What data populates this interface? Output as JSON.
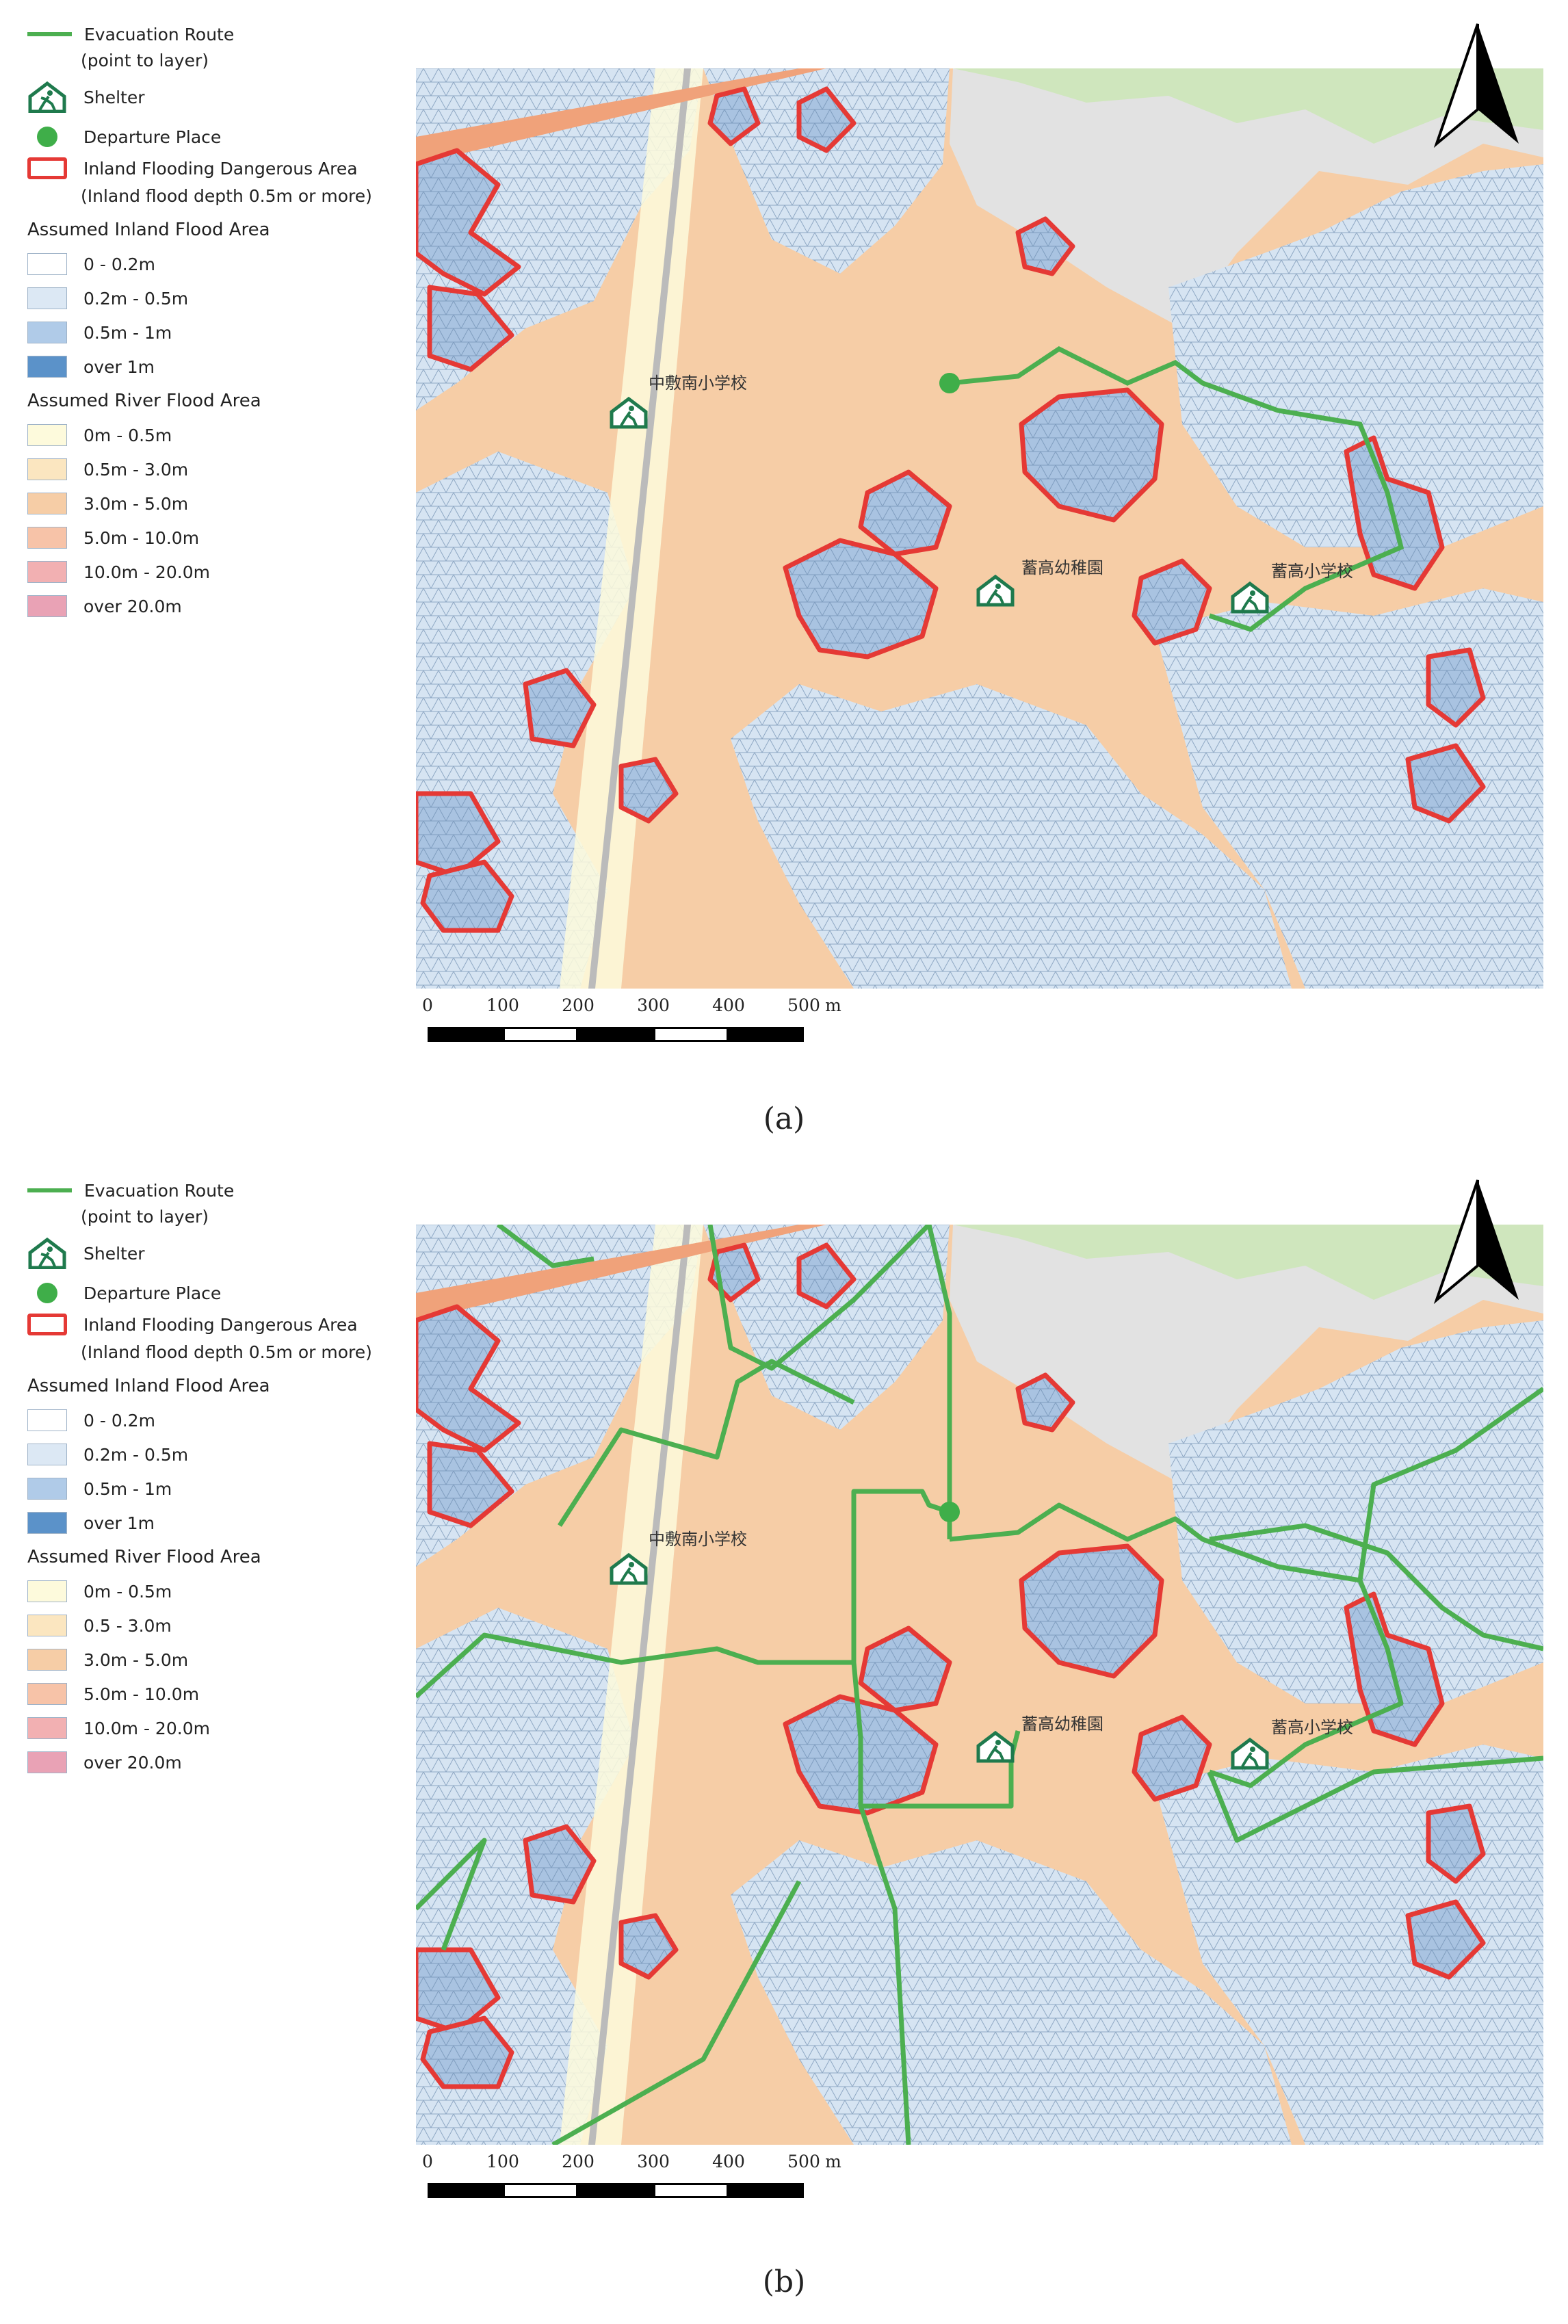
{
  "legend": {
    "route": "Evacuation Route",
    "route_sub": "(point to layer)",
    "shelter": "Shelter",
    "departure": "Departure Place",
    "danger": "Inland Flooding Dangerous Area",
    "danger_sub": "(Inland flood depth 0.5m or more)",
    "inland_header": "Assumed Inland Flood Area",
    "inland": [
      {
        "label": "0 - 0.2m",
        "color": "#ffffff"
      },
      {
        "label": "0.2m - 0.5m",
        "color": "#dce8f4"
      },
      {
        "label": "0.5m - 1m",
        "color": "#b0cbe8"
      },
      {
        "label": "over 1m",
        "color": "#5b92c9"
      }
    ],
    "river_header": "Assumed River Flood Area",
    "river": [
      {
        "label": "0m - 0.5m",
        "color": "#fdfadc"
      },
      {
        "label": "0.5m - 3.0m",
        "color": "#fbe6c0"
      },
      {
        "label": "3.0m - 5.0m",
        "color": "#f6cda6"
      },
      {
        "label": "5.0m - 10.0m",
        "color": "#f7c3a8"
      },
      {
        "label": "10.0m - 20.0m",
        "color": "#f2b0b2"
      },
      {
        "label": "over 20.0m",
        "color": "#e9a2b5"
      }
    ]
  },
  "legend_b": {
    "route": "Evacuation Route",
    "route_sub": "(point to layer)",
    "shelter": "Shelter",
    "departure": "Departure Place",
    "danger": "Inland Flooding Dangerous Area",
    "danger_sub": "(Inland flood depth 0.5m or more)",
    "inland_header": "Assumed Inland Flood Area",
    "inland": [
      {
        "label": "0 - 0.2m"
      },
      {
        "label": "0.2m - 0.5m"
      },
      {
        "label": "0.5m - 1m"
      },
      {
        "label": "over 1m"
      }
    ],
    "river_header": "Assumed River Flood Area",
    "river": [
      {
        "label": "0m - 0.5m"
      },
      {
        "label": "0.5 - 3.0m"
      },
      {
        "label": "3.0m - 5.0m"
      },
      {
        "label": "5.0m - 10.0m"
      },
      {
        "label": "10.0m - 20.0m"
      },
      {
        "label": "over 20.0m"
      }
    ]
  },
  "map_labels": {
    "school_west": "中敷南小学校",
    "kindergarten": "蓄高幼稚園",
    "school_east": "蓄高小学校"
  },
  "scale": {
    "ticks": [
      "0",
      "100",
      "200",
      "300",
      "400",
      "500"
    ],
    "unit": "m"
  },
  "captions": {
    "a": "(a)",
    "b": "(b)"
  },
  "colors": {
    "route": "#4caf50",
    "danger_outline": "#e53935",
    "shelter_icon": "#1f7a4d",
    "departure": "#3fae49",
    "base_land": "#f6cda6",
    "park": "#cfe6bd",
    "urban_gray": "#e4e4e4"
  }
}
